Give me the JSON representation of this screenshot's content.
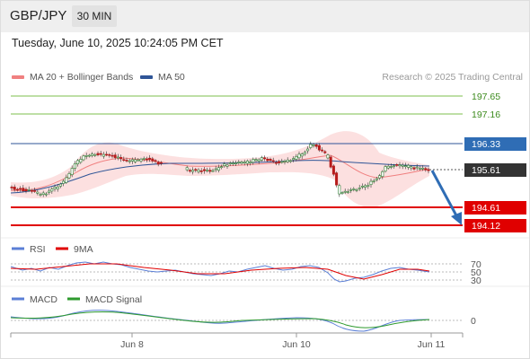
{
  "header": {
    "symbol": "GBP/JPY",
    "timeframe": "30 MIN"
  },
  "datetime": "Tuesday, June 10, 2025 10:24:05 PM CET",
  "legend": {
    "ma20_label": "MA 20 + Bollinger Bands",
    "ma50_label": "MA 50",
    "ma20_color": "#f08080",
    "ma50_color": "#2f5597"
  },
  "credit": "Research © 2025 Trading Central",
  "levels": [
    {
      "value": "197.65",
      "style": "green-line"
    },
    {
      "value": "197.16",
      "style": "green-line"
    },
    {
      "value": "196.33",
      "style": "blue-box"
    },
    {
      "value": "195.61",
      "style": "dark-box-current"
    },
    {
      "value": "194.61",
      "style": "red-box"
    },
    {
      "value": "194.12",
      "style": "red-box"
    }
  ],
  "rsi": {
    "label": "RSI",
    "signal_label": "9MA",
    "rsi_color": "#5b7fd6",
    "signal_color": "#e00000",
    "scale": [
      "70",
      "50",
      "30"
    ]
  },
  "macd": {
    "label": "MACD",
    "signal_label": "MACD Signal",
    "macd_color": "#5b7fd6",
    "signal_color": "#2e9a2e",
    "scale": [
      "0"
    ]
  },
  "x_axis": [
    "Jun 8",
    "Jun 10",
    "Jun 11"
  ],
  "colors": {
    "up_candle": "#2e7d32",
    "down_candle": "#b71c1c",
    "resistance": "#2f5597",
    "support": "#e00000",
    "target_line": "#7cbf4e",
    "arrow": "#2f6db5"
  }
}
